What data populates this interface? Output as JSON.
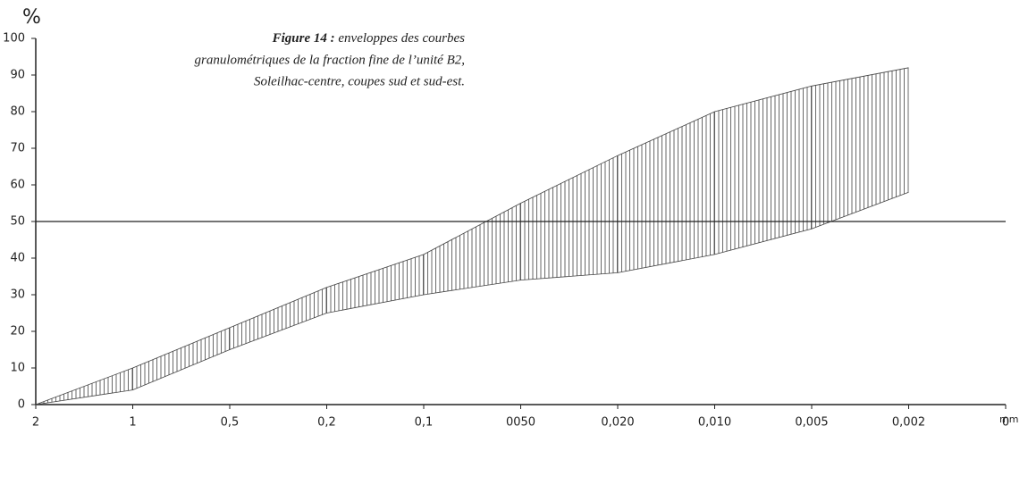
{
  "chart_data": {
    "type": "range-area",
    "title_label": "Figure 14 :",
    "title_lines": [
      "enveloppes des courbes",
      "granulométriques de la fraction fine de l’unité B2,",
      "Soleilhac-centre, coupes sud et sud-est."
    ],
    "y_label": "%",
    "x_label": "mm",
    "categories": [
      "2",
      "1",
      "0,5",
      "0,2",
      "0,1",
      "0050",
      "0,020",
      "0,010",
      "0,005",
      "0,002",
      "0"
    ],
    "lower": [
      0,
      4,
      15,
      25,
      30,
      34,
      36,
      41,
      48,
      58,
      null
    ],
    "upper": [
      0,
      10,
      21,
      32,
      41,
      55,
      68,
      80,
      87,
      92,
      null
    ],
    "color": "#444",
    "reference_line": 50,
    "ylim": [
      0,
      100
    ],
    "yticks": [
      0,
      10,
      20,
      30,
      40,
      50,
      60,
      70,
      80,
      90,
      100
    ]
  }
}
